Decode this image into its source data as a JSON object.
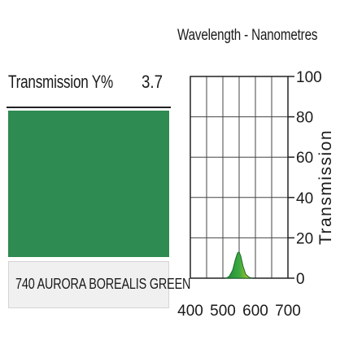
{
  "panel": {
    "transmission_label": "Transmission Y%",
    "transmission_value": "3.7",
    "filter_name": "740 AURORA BOREALIS GREEN",
    "swatch_color": "#2e8b51",
    "accent_color": "#3aa83f"
  },
  "chart_data": {
    "type": "area",
    "title": "Wavelength - Nanometres",
    "xlabel": "",
    "ylabel": "Transmission",
    "xlim": [
      400,
      700
    ],
    "ylim": [
      0,
      100
    ],
    "x_ticks": [
      400,
      500,
      600,
      700
    ],
    "y_ticks": [
      0,
      20,
      40,
      60,
      80,
      100
    ],
    "grid": true,
    "series": [
      {
        "x": [
          510,
          520,
          530,
          538,
          545,
          550,
          555,
          562,
          570,
          580,
          590
        ],
        "values": [
          0,
          1,
          4,
          9,
          12.5,
          13,
          11,
          6,
          2,
          0.5,
          0
        ]
      }
    ]
  }
}
